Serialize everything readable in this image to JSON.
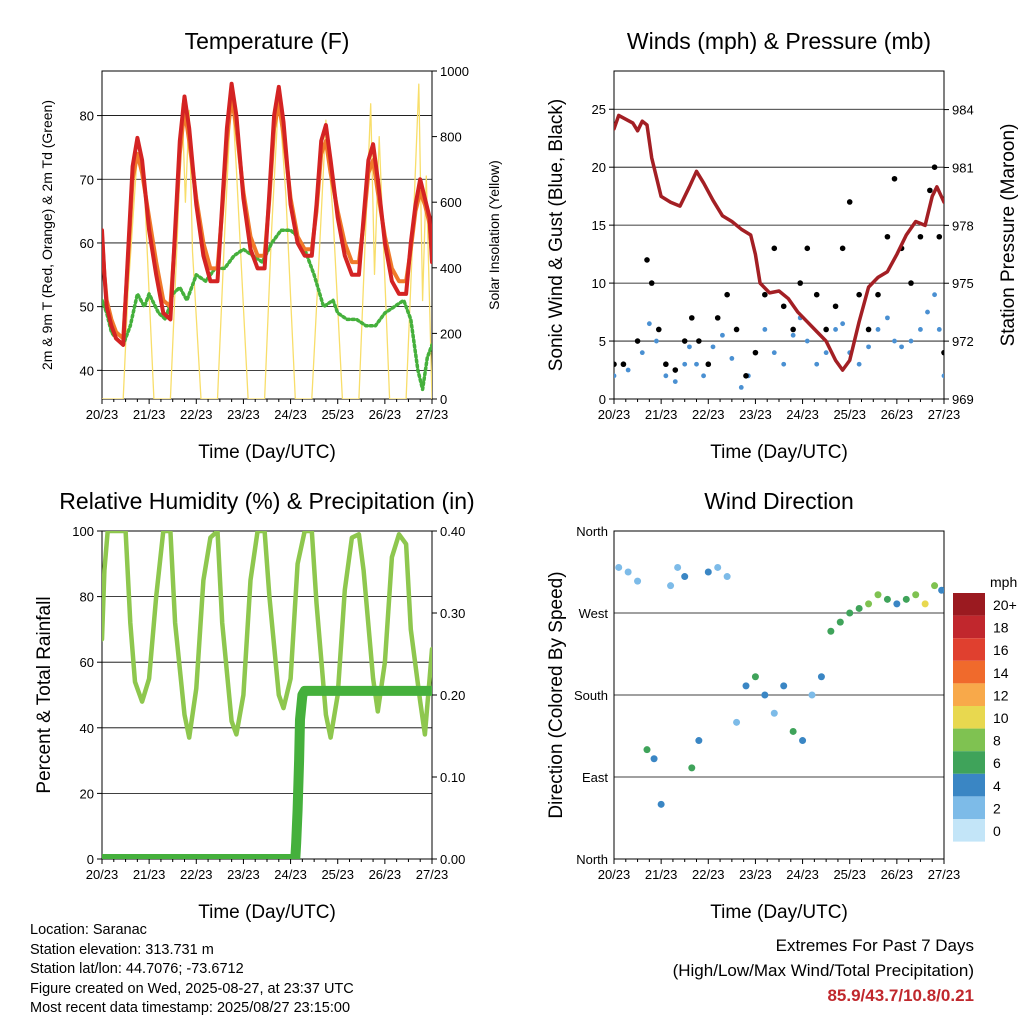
{
  "chart_data": [
    {
      "type": "line",
      "title": "Temperature (F)",
      "xlabel": "Time (Day/UTC)",
      "ylabel": "2m & 9m T (Red, Orange) & 2m Td (Green)",
      "ylabel_right": "Solar Insolation (Yellow)",
      "x_tick_labels": [
        "20/23",
        "21/23",
        "22/23",
        "23/23",
        "24/23",
        "25/23",
        "26/23",
        "27/23"
      ],
      "ylim": [
        35.5,
        87
      ],
      "yticks": [
        40,
        50,
        60,
        70,
        80
      ],
      "ylim_right": [
        0,
        1000
      ],
      "yticks_right": [
        0,
        200,
        400,
        600,
        800,
        1000
      ],
      "grid": true,
      "series": [
        {
          "role": "temp2m",
          "color": "#d42323",
          "x": [
            0,
            0.05,
            0.1,
            0.2,
            0.3,
            0.45,
            0.55,
            0.65,
            0.75,
            0.85,
            1.0,
            1.15,
            1.3,
            1.45,
            1.55,
            1.65,
            1.75,
            1.85,
            2.0,
            2.15,
            2.3,
            2.45,
            2.55,
            2.65,
            2.75,
            2.85,
            3.0,
            3.15,
            3.3,
            3.45,
            3.55,
            3.65,
            3.75,
            3.85,
            4.0,
            4.15,
            4.3,
            4.45,
            4.55,
            4.65,
            4.75,
            4.85,
            5.0,
            5.15,
            5.3,
            5.45,
            5.55,
            5.65,
            5.75,
            5.85,
            6.0,
            6.15,
            6.3,
            6.45,
            6.55,
            6.65,
            6.75,
            6.85,
            6.95,
            7.0
          ],
          "y": [
            62,
            55,
            50,
            47,
            45,
            44,
            58,
            72,
            76.5,
            73,
            62,
            55,
            49,
            48,
            62,
            76,
            83,
            78,
            66,
            58,
            54,
            54,
            66,
            78,
            85,
            80,
            67,
            59,
            56,
            56,
            68,
            80,
            84.5,
            79,
            66,
            60,
            58,
            58,
            66,
            76,
            78.5,
            73,
            64,
            58,
            55,
            55,
            64,
            73,
            75.5,
            70,
            60,
            54,
            52,
            52,
            60,
            66,
            70,
            67,
            64,
            57
          ]
        },
        {
          "role": "temp9m",
          "color": "#f07a2a",
          "x": [
            0,
            0.05,
            0.1,
            0.2,
            0.3,
            0.45,
            0.55,
            0.65,
            0.75,
            0.85,
            1.0,
            1.15,
            1.3,
            1.45,
            1.55,
            1.65,
            1.75,
            1.85,
            2.0,
            2.15,
            2.3,
            2.45,
            2.55,
            2.65,
            2.75,
            2.85,
            3.0,
            3.15,
            3.3,
            3.45,
            3.55,
            3.65,
            3.75,
            3.85,
            4.0,
            4.15,
            4.3,
            4.45,
            4.55,
            4.65,
            4.75,
            4.85,
            5.0,
            5.15,
            5.3,
            5.45,
            5.55,
            5.65,
            5.75,
            5.85,
            6.0,
            6.15,
            6.3,
            6.45,
            6.55,
            6.65,
            6.75,
            6.85,
            6.95,
            7.0
          ],
          "y": [
            61,
            55,
            51,
            48,
            46,
            45,
            57,
            70,
            74,
            71,
            64,
            57,
            51,
            50,
            61,
            74,
            81,
            76,
            67,
            60,
            56,
            56,
            65,
            76,
            83,
            78,
            68,
            61,
            58,
            58,
            67,
            78,
            82,
            77,
            67,
            61,
            59,
            59,
            65,
            74,
            76,
            71,
            65,
            60,
            57,
            57,
            63,
            71,
            73,
            68,
            61,
            56,
            54,
            54,
            59,
            65,
            68,
            66,
            63,
            58
          ]
        },
        {
          "role": "dewpoint",
          "color": "#45b03c",
          "x": [
            0,
            0.1,
            0.2,
            0.3,
            0.45,
            0.6,
            0.75,
            0.9,
            1.0,
            1.2,
            1.35,
            1.5,
            1.65,
            1.8,
            2.0,
            2.2,
            2.4,
            2.6,
            2.8,
            3.0,
            3.2,
            3.4,
            3.6,
            3.8,
            4.0,
            4.15,
            4.3,
            4.5,
            4.7,
            4.9,
            5.0,
            5.2,
            5.4,
            5.6,
            5.8,
            6.0,
            6.2,
            6.4,
            6.55,
            6.7,
            6.8,
            6.9,
            7.0
          ],
          "y": [
            51,
            49,
            46,
            45,
            44,
            47,
            52,
            50,
            52,
            49,
            48,
            52,
            53,
            51,
            55,
            54,
            56,
            56,
            58,
            59,
            58,
            57,
            60,
            62,
            62,
            61,
            59,
            55,
            50,
            51,
            49,
            48,
            48,
            47,
            47,
            49,
            50,
            51,
            48,
            40,
            37,
            42,
            44
          ]
        },
        {
          "role": "solar",
          "axis": "right",
          "color": "#f8de6a",
          "x": [
            0,
            0.45,
            0.55,
            0.75,
            0.9,
            1.1,
            1.45,
            1.6,
            1.7,
            1.77,
            1.85,
            1.92,
            2.1,
            2.45,
            2.6,
            2.75,
            2.85,
            3.1,
            3.45,
            3.6,
            3.75,
            3.9,
            4.1,
            4.45,
            4.6,
            4.75,
            4.9,
            5.1,
            5.45,
            5.55,
            5.7,
            5.78,
            5.88,
            6.1,
            6.45,
            6.6,
            6.72,
            6.8,
            6.88,
            7.0
          ],
          "y": [
            0,
            0,
            320,
            750,
            640,
            0,
            0,
            500,
            900,
            600,
            880,
            450,
            0,
            0,
            500,
            950,
            700,
            0,
            0,
            520,
            930,
            620,
            0,
            0,
            420,
            850,
            560,
            0,
            0,
            360,
            900,
            380,
            800,
            0,
            0,
            520,
            960,
            300,
            680,
            0
          ]
        }
      ]
    },
    {
      "type": "scatter",
      "title": "Winds (mph) & Pressure (mb)",
      "xlabel": "Time (Day/UTC)",
      "ylabel": "Sonic Wind & Gust (Blue, Black)",
      "ylabel_right": "Station Pressure (Maroon)",
      "x_tick_labels": [
        "20/23",
        "21/23",
        "22/23",
        "23/23",
        "24/23",
        "25/23",
        "26/23",
        "27/23"
      ],
      "ylim": [
        0,
        28.3
      ],
      "yticks": [
        0,
        5,
        10,
        15,
        20,
        25
      ],
      "ylim_right": [
        969,
        986
      ],
      "yticks_right": [
        969,
        972,
        975,
        978,
        981,
        984
      ],
      "grid": true,
      "series": [
        {
          "role": "wind",
          "color": "#4a90d2",
          "x": [
            0,
            0.3,
            0.6,
            0.75,
            0.9,
            1.1,
            1.3,
            1.5,
            1.6,
            1.75,
            1.9,
            2.1,
            2.3,
            2.5,
            2.7,
            2.85,
            3.0,
            3.2,
            3.4,
            3.6,
            3.8,
            3.95,
            4.1,
            4.3,
            4.5,
            4.7,
            4.85,
            5.0,
            5.2,
            5.4,
            5.6,
            5.8,
            5.95,
            6.1,
            6.3,
            6.5,
            6.65,
            6.8,
            6.9,
            7.0
          ],
          "y": [
            2,
            2.5,
            4,
            6.5,
            5,
            2,
            1.5,
            3,
            4.5,
            3,
            2,
            4.5,
            5.5,
            3.5,
            1,
            2,
            4,
            6,
            4,
            3,
            5.5,
            7,
            5,
            3,
            4,
            6,
            6.5,
            4,
            3,
            4.5,
            6,
            7,
            5,
            4.5,
            5,
            6,
            7.5,
            9,
            6,
            2
          ]
        },
        {
          "role": "gust",
          "color": "#000000",
          "x": [
            0,
            0.2,
            0.5,
            0.7,
            0.8,
            0.95,
            1.1,
            1.3,
            1.5,
            1.65,
            1.8,
            2.0,
            2.2,
            2.4,
            2.6,
            2.8,
            3.0,
            3.2,
            3.4,
            3.6,
            3.8,
            3.95,
            4.1,
            4.3,
            4.5,
            4.7,
            4.85,
            5.0,
            5.2,
            5.4,
            5.6,
            5.8,
            5.95,
            6.1,
            6.3,
            6.5,
            6.7,
            6.8,
            6.9,
            7.0
          ],
          "y": [
            3,
            3,
            5,
            12,
            10,
            6,
            3,
            2.5,
            5,
            7,
            5,
            3,
            7,
            9,
            6,
            2,
            4,
            9,
            13,
            8,
            6,
            10,
            13,
            9,
            6,
            8,
            13,
            17,
            9,
            6,
            9,
            14,
            19,
            13,
            10,
            14,
            18,
            20,
            14,
            4
          ]
        },
        {
          "role": "pressure",
          "axis": "right",
          "color": "#a31f24",
          "x": [
            0,
            0.1,
            0.4,
            0.5,
            0.6,
            0.7,
            0.8,
            1.0,
            1.2,
            1.4,
            1.6,
            1.75,
            1.9,
            2.1,
            2.3,
            2.5,
            2.7,
            2.9,
            3.0,
            3.1,
            3.3,
            3.5,
            3.7,
            3.9,
            4.1,
            4.3,
            4.5,
            4.7,
            4.85,
            5.0,
            5.2,
            5.4,
            5.6,
            5.8,
            6.0,
            6.2,
            6.4,
            6.6,
            6.75,
            6.85,
            7.0
          ],
          "y": [
            983,
            983.7,
            983.3,
            982.9,
            983.4,
            983.2,
            981.5,
            979.5,
            979.2,
            979.0,
            980.0,
            980.8,
            980.2,
            979.3,
            978.5,
            978.2,
            977.8,
            977.5,
            976.5,
            975.0,
            974.5,
            974.6,
            974.2,
            973.5,
            973.0,
            972.5,
            972.0,
            971.0,
            970.5,
            971.0,
            973.0,
            974.8,
            975.3,
            975.6,
            976.5,
            977.5,
            978.2,
            978.0,
            979.5,
            980.0,
            979.2
          ]
        }
      ]
    },
    {
      "type": "line",
      "title": "Relative Humidity (%) & Precipitation (in)",
      "xlabel": "Time (Day/UTC)",
      "ylabel": "Percent & Total Rainfall",
      "x_tick_labels": [
        "20/23",
        "21/23",
        "22/23",
        "23/23",
        "24/23",
        "25/23",
        "26/23",
        "27/23"
      ],
      "ylim": [
        0,
        100
      ],
      "yticks": [
        0,
        20,
        40,
        60,
        80,
        100
      ],
      "ylim_right": [
        0,
        0.4
      ],
      "yticks_right": [
        "0.00",
        "0.10",
        "0.20",
        "0.30",
        "0.40"
      ],
      "grid": true,
      "series": [
        {
          "role": "rh",
          "color": "#8ec74e",
          "x": [
            0,
            0.05,
            0.12,
            0.2,
            0.5,
            0.6,
            0.7,
            0.85,
            1.0,
            1.15,
            1.3,
            1.4,
            1.45,
            1.55,
            1.75,
            1.85,
            2.0,
            2.15,
            2.3,
            2.45,
            2.55,
            2.75,
            2.85,
            3.0,
            3.15,
            3.3,
            3.45,
            3.55,
            3.75,
            3.85,
            4.0,
            4.15,
            4.3,
            4.45,
            4.55,
            4.75,
            4.85,
            5.0,
            5.15,
            5.3,
            5.45,
            5.55,
            5.75,
            5.85,
            6.0,
            6.15,
            6.3,
            6.45,
            6.55,
            6.75,
            6.85,
            6.95,
            7.0
          ],
          "y": [
            67,
            88,
            100,
            100,
            100,
            72,
            54,
            48,
            55,
            80,
            100,
            100,
            100,
            72,
            44,
            37,
            52,
            85,
            98,
            100,
            72,
            42,
            38,
            50,
            85,
            100,
            100,
            80,
            50,
            46,
            55,
            90,
            100,
            100,
            78,
            44,
            37,
            50,
            82,
            98,
            99,
            88,
            55,
            45,
            60,
            92,
            99,
            96,
            70,
            48,
            38,
            55,
            64
          ]
        },
        {
          "role": "precip",
          "axis": "right",
          "color": "#45b03c",
          "x": [
            0,
            4.1,
            4.12,
            4.15,
            4.18,
            4.2,
            4.25,
            4.3,
            7.0
          ],
          "y": [
            0,
            0,
            0.02,
            0.06,
            0.12,
            0.17,
            0.2,
            0.205,
            0.205
          ]
        }
      ]
    },
    {
      "type": "scatter",
      "title": "Wind Direction",
      "xlabel": "Time (Day/UTC)",
      "ylabel": "Direction (Colored By Speed)",
      "x_tick_labels": [
        "20/23",
        "21/23",
        "22/23",
        "23/23",
        "24/23",
        "25/23",
        "26/23",
        "27/23"
      ],
      "y_tick_labels": [
        "North",
        "East",
        "South",
        "West",
        "North"
      ],
      "ylim": [
        0,
        360
      ],
      "grid": true,
      "colorbar": {
        "title": "mph",
        "labels": [
          "20+",
          "18",
          "16",
          "14",
          "12",
          "10",
          "8",
          "6",
          "4",
          "2",
          "0"
        ],
        "colors": [
          "#9b1a20",
          "#c1272d",
          "#e0402f",
          "#f06a2c",
          "#f8a94a",
          "#e8d84f",
          "#7fc251",
          "#3fa35a",
          "#3a86c4",
          "#7dbbe8",
          "#c3e5f8"
        ]
      },
      "series": [
        {
          "role": "direction",
          "speed_colored": true,
          "x": [
            0.1,
            0.3,
            0.5,
            0.7,
            0.85,
            1.0,
            1.2,
            1.35,
            1.5,
            1.65,
            1.8,
            2.0,
            2.2,
            2.4,
            2.6,
            2.8,
            3.0,
            3.2,
            3.4,
            3.6,
            3.8,
            4.0,
            4.2,
            4.4,
            4.6,
            4.8,
            5.0,
            5.2,
            5.4,
            5.6,
            5.8,
            6.0,
            6.2,
            6.4,
            6.6,
            6.8,
            6.95
          ],
          "y": [
            320,
            315,
            305,
            120,
            110,
            60,
            300,
            320,
            310,
            100,
            130,
            315,
            320,
            310,
            150,
            190,
            200,
            180,
            160,
            190,
            140,
            130,
            180,
            200,
            250,
            260,
            270,
            275,
            280,
            290,
            285,
            280,
            285,
            290,
            280,
            300,
            295
          ],
          "speed": [
            2,
            2,
            1,
            6,
            4,
            3,
            1,
            2,
            3,
            5,
            4,
            3,
            2,
            1,
            1,
            3,
            5,
            4,
            2,
            4,
            5,
            3,
            2,
            3,
            6,
            5,
            5,
            6,
            7,
            8,
            6,
            4,
            5,
            7,
            9,
            8,
            4
          ]
        }
      ]
    }
  ],
  "info": {
    "location": "Location: Saranac",
    "elevation": "Station elevation: 313.731 m",
    "latlon": "Station lat/lon: 44.7076; -73.6712",
    "created": "Figure created on Wed, 2025-08-27, at 23:37 UTC",
    "recent": "Most recent data timestamp: 2025/08/27 23:15:00"
  },
  "extremes": {
    "title": "Extremes For Past 7 Days",
    "subtitle": "(High/Low/Max Wind/Total Precipitation)",
    "values": "85.9/43.7/10.8/0.21"
  }
}
